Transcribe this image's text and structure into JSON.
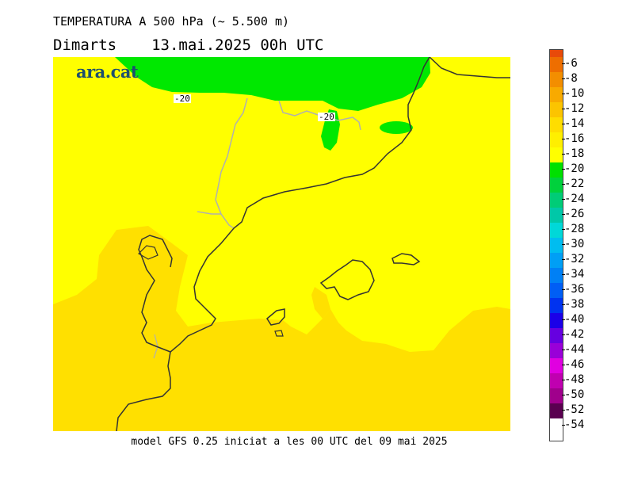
{
  "header": {
    "title": "TEMPERATURA A 500 hPa (~ 5.500 m)",
    "day": "Dimarts",
    "datetime": "13.mai.2025 00h UTC"
  },
  "logo": "ara.cat",
  "footer": "model GFS 0.25 iniciat a les 00 UTC del 09 mai 2025",
  "map": {
    "contour_labels": [
      "-20",
      "-20"
    ],
    "colors": {
      "pale_yellow": "#ffff00",
      "gold": "#ffe000",
      "green": "#00e800",
      "coast": "#333333",
      "border": "#b0b0b0"
    }
  },
  "legend": {
    "labels": [
      "-6",
      "-8",
      "-10",
      "-12",
      "-14",
      "-16",
      "-18",
      "-20",
      "-22",
      "-24",
      "-26",
      "-28",
      "-30",
      "-32",
      "-34",
      "-36",
      "-38",
      "-40",
      "-42",
      "-44",
      "-46",
      "-48",
      "-50",
      "-52",
      "-54"
    ],
    "colors": [
      "#e84a0a",
      "#ee6e00",
      "#f38e00",
      "#f8aa00",
      "#fcc400",
      "#ffdd00",
      "#ffef00",
      "#ffff00",
      "#00e000",
      "#00d13c",
      "#00cc77",
      "#00c8a8",
      "#00d8d8",
      "#00bdf0",
      "#009ff5",
      "#0080f5",
      "#005ef5",
      "#0033f0",
      "#1b00e8",
      "#6600e0",
      "#9900d8",
      "#e000e0",
      "#c000b0",
      "#a0008c",
      "#5a0050"
    ]
  }
}
